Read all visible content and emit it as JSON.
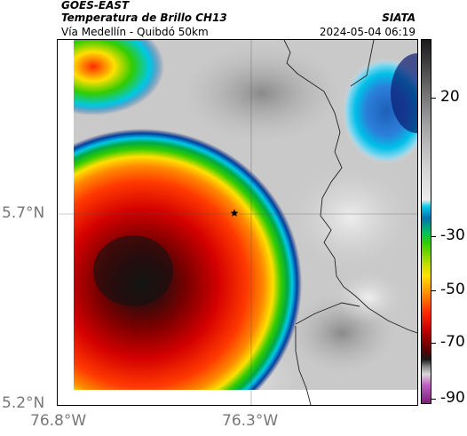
{
  "header": {
    "satellite": "GOES-EAST",
    "product": "Temperatura de Brillo CH13",
    "location": "Vía Medellín - Quibdó 50km",
    "organization": "SIATA",
    "timestamp": "2024-05-04 06:19"
  },
  "axes": {
    "lat_labels": [
      "5.7°N",
      "5.2°N"
    ],
    "lon_labels": [
      "76.8°W",
      "76.3°W"
    ]
  },
  "colorbar": {
    "labels": [
      "20",
      "-30",
      "-50",
      "-70",
      "-90"
    ]
  },
  "marker": {
    "icon": "star-icon"
  }
}
